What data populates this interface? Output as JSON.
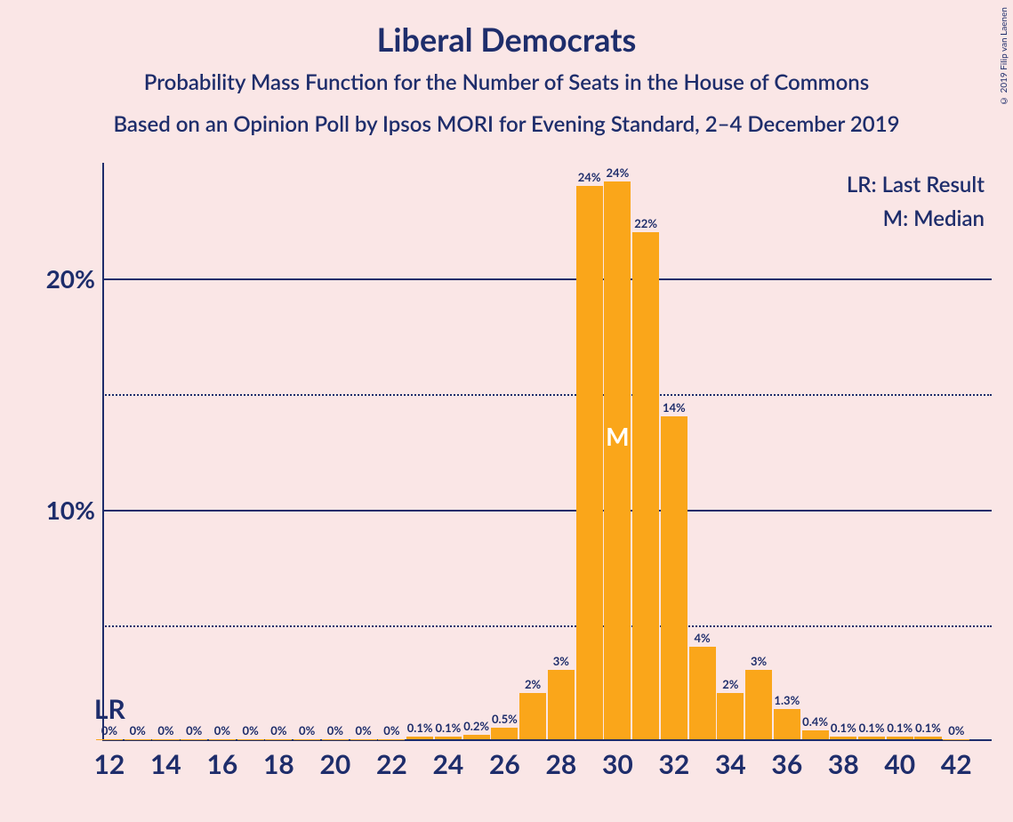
{
  "title": "Liberal Democrats",
  "subtitle1": "Probability Mass Function for the Number of Seats in the House of Commons",
  "subtitle2": "Based on an Opinion Poll by Ipsos MORI for Evening Standard, 2–4 December 2019",
  "copyright": "© 2019 Filip van Laenen",
  "legend": {
    "lr": "LR: Last Result",
    "m": "M: Median"
  },
  "chart": {
    "type": "bar",
    "bar_color": "#FAA61A",
    "background_color": "#fae6e6",
    "text_color": "#1e2d6b",
    "median_text_color": "#ffffff",
    "title_fontsize": 36,
    "subtitle_fontsize": 24,
    "ytick_fontsize": 28,
    "xtick_fontsize": 30,
    "barlabel_fontsize": 13,
    "ylim": [
      0,
      25
    ],
    "ymajor": [
      10,
      20
    ],
    "yminor": [
      5,
      15
    ],
    "x_range": [
      12,
      42
    ],
    "x_tick_step": 2,
    "lr_x": 12,
    "median_x": 30,
    "bars": [
      {
        "x": 12,
        "v": 0,
        "label": "0%"
      },
      {
        "x": 13,
        "v": 0,
        "label": "0%"
      },
      {
        "x": 14,
        "v": 0,
        "label": "0%"
      },
      {
        "x": 15,
        "v": 0,
        "label": "0%"
      },
      {
        "x": 16,
        "v": 0,
        "label": "0%"
      },
      {
        "x": 17,
        "v": 0,
        "label": "0%"
      },
      {
        "x": 18,
        "v": 0,
        "label": "0%"
      },
      {
        "x": 19,
        "v": 0,
        "label": "0%"
      },
      {
        "x": 20,
        "v": 0,
        "label": "0%"
      },
      {
        "x": 21,
        "v": 0,
        "label": "0%"
      },
      {
        "x": 22,
        "v": 0,
        "label": "0%"
      },
      {
        "x": 23,
        "v": 0.1,
        "label": "0.1%"
      },
      {
        "x": 24,
        "v": 0.1,
        "label": "0.1%"
      },
      {
        "x": 25,
        "v": 0.2,
        "label": "0.2%"
      },
      {
        "x": 26,
        "v": 0.5,
        "label": "0.5%"
      },
      {
        "x": 27,
        "v": 2,
        "label": "2%"
      },
      {
        "x": 28,
        "v": 3,
        "label": "3%"
      },
      {
        "x": 29,
        "v": 24,
        "label": "24%"
      },
      {
        "x": 30,
        "v": 24.2,
        "label": "24%"
      },
      {
        "x": 31,
        "v": 22,
        "label": "22%"
      },
      {
        "x": 32,
        "v": 14,
        "label": "14%"
      },
      {
        "x": 33,
        "v": 4,
        "label": "4%"
      },
      {
        "x": 34,
        "v": 2,
        "label": "2%"
      },
      {
        "x": 35,
        "v": 3,
        "label": "3%"
      },
      {
        "x": 36,
        "v": 1.3,
        "label": "1.3%"
      },
      {
        "x": 37,
        "v": 0.4,
        "label": "0.4%"
      },
      {
        "x": 38,
        "v": 0.1,
        "label": "0.1%"
      },
      {
        "x": 39,
        "v": 0.1,
        "label": "0.1%"
      },
      {
        "x": 40,
        "v": 0.1,
        "label": "0.1%"
      },
      {
        "x": 41,
        "v": 0.1,
        "label": "0.1%"
      },
      {
        "x": 42,
        "v": 0,
        "label": "0%"
      }
    ],
    "lr_text": "LR",
    "median_text": "M"
  }
}
